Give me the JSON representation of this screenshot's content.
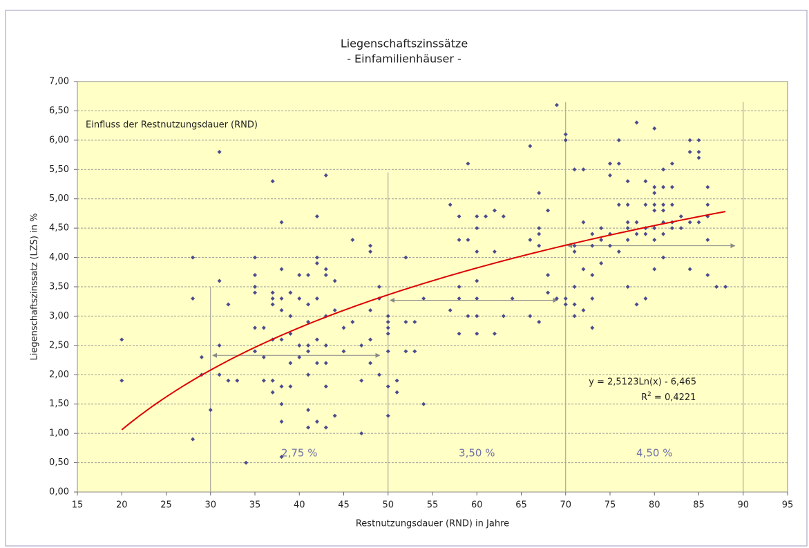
{
  "chart_data": {
    "type": "scatter",
    "title": "Liegenschaftszinssätze",
    "subtitle": "- Einfamilienhäuser -",
    "x_label": "Restnutzungsdauer (RND) in Jahre",
    "y_label": "Liegenschaftszinssatz (LZS) in %",
    "annotation": "Einfluss der Restnutzungsdauer (RND)",
    "equation": "y = 2,5123Ln(x) - 6,465",
    "r2": {
      "prefix": "R",
      "sup": "2",
      "rest": " = 0,4221"
    },
    "color": "#4b4b8f",
    "x": [
      20,
      20,
      28,
      28,
      28,
      29,
      29,
      30,
      31,
      31,
      31,
      31,
      32,
      32,
      33,
      34,
      35,
      35,
      35,
      35,
      35,
      35,
      36,
      36,
      36,
      37,
      37,
      37,
      37,
      37,
      37,
      37,
      38,
      38,
      38,
      38,
      38,
      38,
      38,
      38,
      38,
      39,
      39,
      39,
      39,
      39,
      40,
      40,
      40,
      40,
      41,
      41,
      41,
      41,
      41,
      41,
      41,
      41,
      42,
      42,
      42,
      42,
      42,
      42,
      42,
      43,
      43,
      43,
      43,
      43,
      43,
      43,
      43,
      44,
      44,
      44,
      45,
      45,
      46,
      46,
      47,
      47,
      47,
      48,
      48,
      48,
      48,
      48,
      49,
      49,
      49,
      50,
      50,
      50,
      50,
      50,
      50,
      50,
      51,
      51,
      52,
      52,
      52,
      53,
      53,
      54,
      54,
      57,
      57,
      58,
      58,
      58,
      58,
      58,
      59,
      59,
      59,
      60,
      60,
      60,
      60,
      60,
      60,
      60,
      61,
      62,
      62,
      62,
      63,
      63,
      64,
      66,
      66,
      66,
      67,
      67,
      67,
      67,
      67,
      68,
      68,
      68,
      69,
      69,
      70,
      70,
      70,
      70,
      71,
      71,
      71,
      71,
      71,
      71,
      72,
      72,
      72,
      72,
      73,
      73,
      73,
      73,
      73,
      74,
      74,
      74,
      75,
      75,
      75,
      75,
      76,
      76,
      76,
      76,
      77,
      77,
      77,
      77,
      77,
      77,
      78,
      78,
      78,
      78,
      79,
      79,
      79,
      79,
      79,
      80,
      80,
      80,
      80,
      80,
      80,
      80,
      80,
      81,
      81,
      81,
      81,
      81,
      81,
      81,
      82,
      82,
      82,
      82,
      82,
      83,
      83,
      84,
      84,
      84,
      84,
      85,
      85,
      85,
      85,
      86,
      86,
      86,
      86,
      86,
      87,
      88
    ],
    "values": [
      2.6,
      1.9,
      4.0,
      3.3,
      0.9,
      2.3,
      2.0,
      1.4,
      5.8,
      3.6,
      2.5,
      2.0,
      3.2,
      1.9,
      1.9,
      0.5,
      4.0,
      3.7,
      3.5,
      3.4,
      2.8,
      2.4,
      2.8,
      2.3,
      1.9,
      5.3,
      3.4,
      3.3,
      3.2,
      2.6,
      1.9,
      1.7,
      4.6,
      3.8,
      3.3,
      3.1,
      2.6,
      1.8,
      1.5,
      1.2,
      0.6,
      3.4,
      3.0,
      2.7,
      2.2,
      1.8,
      3.7,
      3.3,
      2.5,
      2.3,
      3.7,
      3.2,
      2.9,
      2.5,
      2.4,
      2.0,
      1.4,
      1.1,
      4.7,
      4.0,
      3.9,
      3.3,
      2.6,
      2.2,
      1.2,
      5.4,
      3.8,
      3.7,
      3.0,
      2.5,
      2.2,
      1.8,
      1.1,
      3.6,
      3.1,
      1.3,
      2.8,
      2.4,
      4.3,
      2.9,
      2.5,
      1.9,
      1.0,
      4.2,
      4.1,
      3.1,
      2.6,
      2.2,
      3.5,
      3.3,
      2.0,
      3.0,
      2.9,
      2.8,
      2.7,
      2.4,
      1.8,
      1.3,
      1.9,
      1.7,
      4.0,
      2.9,
      2.4,
      2.9,
      2.4,
      3.3,
      1.5,
      4.9,
      3.1,
      4.7,
      4.3,
      3.5,
      3.3,
      2.7,
      5.6,
      4.3,
      3.0,
      4.7,
      4.5,
      4.1,
      3.6,
      3.3,
      3.0,
      2.7,
      4.7,
      4.8,
      4.1,
      2.7,
      4.7,
      3.0,
      3.3,
      5.9,
      4.3,
      3.0,
      5.1,
      4.5,
      4.4,
      4.2,
      2.9,
      4.8,
      3.7,
      3.4,
      6.6,
      3.3,
      6.1,
      6.0,
      3.3,
      3.2,
      5.5,
      4.2,
      4.1,
      3.5,
      3.2,
      3.0,
      5.5,
      4.6,
      3.8,
      3.1,
      4.4,
      4.2,
      3.7,
      3.3,
      2.8,
      4.5,
      4.3,
      3.9,
      5.6,
      5.4,
      4.4,
      4.2,
      6.0,
      5.6,
      4.9,
      4.1,
      5.3,
      4.9,
      4.6,
      4.5,
      4.3,
      3.5,
      6.3,
      4.6,
      4.4,
      3.2,
      5.3,
      4.9,
      4.5,
      4.4,
      3.3,
      6.2,
      5.2,
      5.1,
      4.9,
      4.8,
      4.5,
      4.3,
      3.8,
      5.5,
      5.2,
      4.9,
      4.8,
      4.6,
      4.4,
      4.0,
      5.6,
      5.2,
      4.9,
      4.6,
      4.5,
      4.7,
      4.5,
      6.0,
      5.8,
      4.6,
      3.8,
      6.0,
      5.8,
      5.7,
      4.6,
      5.2,
      4.9,
      4.7,
      4.3,
      3.7,
      3.5,
      3.5
    ],
    "trendline": {
      "type": "log",
      "a": 2.5123,
      "b": -6.465,
      "xrange": [
        20,
        88
      ],
      "color": "#dd0000"
    },
    "segments": [
      {
        "x0": 30,
        "x1": 50,
        "top": 3.5,
        "arrow_y": 2.33,
        "label": "2,75 %"
      },
      {
        "x0": 50,
        "x1": 70,
        "top": 5.45,
        "arrow_y": 3.27,
        "label": "3,50 %"
      },
      {
        "x0": 70,
        "x1": 90,
        "top": 6.65,
        "arrow_y": 4.2,
        "label": "4,50 %"
      }
    ],
    "xlim": [
      15,
      95
    ],
    "xticks": [
      15,
      20,
      25,
      30,
      35,
      40,
      45,
      50,
      55,
      60,
      65,
      70,
      75,
      80,
      85,
      90,
      95
    ],
    "ylim": [
      0,
      7
    ],
    "yticks": [
      {
        "value": 0,
        "label": "0,00"
      },
      {
        "value": 0.5,
        "label": "0,50"
      },
      {
        "value": 1,
        "label": "1,00"
      },
      {
        "value": 1.5,
        "label": "1,50"
      },
      {
        "value": 2,
        "label": "2,00"
      },
      {
        "value": 2.5,
        "label": "2,50"
      },
      {
        "value": 3,
        "label": "3,00"
      },
      {
        "value": 3.5,
        "label": "3,50"
      },
      {
        "value": 4,
        "label": "4,00"
      },
      {
        "value": 4.5,
        "label": "4,50"
      },
      {
        "value": 5,
        "label": "5,00"
      },
      {
        "value": 5.5,
        "label": "5,50"
      },
      {
        "value": 6,
        "label": "6,00"
      },
      {
        "value": 6.5,
        "label": "6,50"
      },
      {
        "value": 7,
        "label": "7,00"
      }
    ],
    "grid": true
  }
}
